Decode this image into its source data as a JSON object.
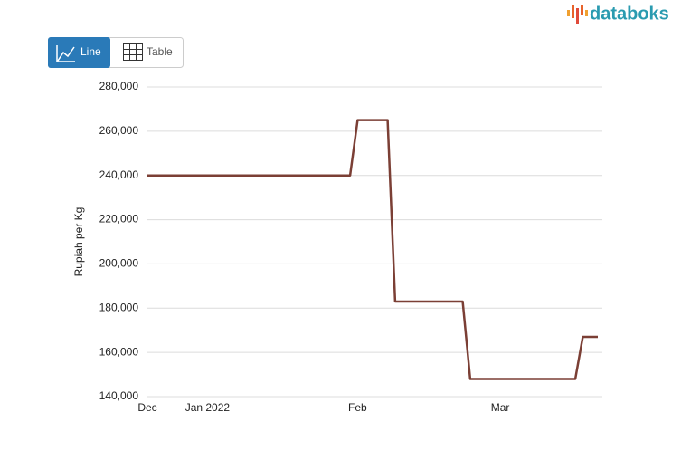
{
  "ui": {
    "brand": "databoks",
    "buttons": [
      "Line",
      "Table"
    ]
  },
  "chart_data": {
    "type": "line",
    "y_label": "Rupiah per Kg",
    "categories": [
      "Dec",
      null,
      null,
      null,
      null,
      null,
      null,
      null,
      "Jan 2022",
      null,
      null,
      null,
      null,
      null,
      null,
      null,
      null,
      null,
      null,
      null,
      null,
      null,
      null,
      null,
      null,
      null,
      null,
      null,
      "Feb",
      null,
      null,
      null,
      null,
      null,
      null,
      null,
      null,
      null,
      null,
      null,
      null,
      null,
      null,
      null,
      null,
      null,
      null,
      "Mar",
      null,
      null,
      null,
      null,
      null,
      null,
      null,
      null,
      null,
      null,
      null,
      null,
      null
    ],
    "series": [
      {
        "name": "Rupiah per Kg",
        "color": "#7b3f35",
        "values": [
          240000,
          240000,
          240000,
          240000,
          240000,
          240000,
          240000,
          240000,
          240000,
          240000,
          240000,
          240000,
          240000,
          240000,
          240000,
          240000,
          240000,
          240000,
          240000,
          240000,
          240000,
          240000,
          240000,
          240000,
          240000,
          240000,
          240000,
          240000,
          265000,
          265000,
          265000,
          265000,
          265000,
          183000,
          183000,
          183000,
          183000,
          183000,
          183000,
          183000,
          183000,
          183000,
          183000,
          148000,
          148000,
          148000,
          148000,
          148000,
          148000,
          148000,
          148000,
          148000,
          148000,
          148000,
          148000,
          148000,
          148000,
          148000,
          167000,
          167000,
          167000
        ]
      }
    ],
    "ylim": [
      140000,
      280000
    ],
    "yticks": [
      {
        "value": 140000,
        "label": "140,000"
      },
      {
        "value": 160000,
        "label": "160,000"
      },
      {
        "value": 180000,
        "label": "180,000"
      },
      {
        "value": 200000,
        "label": "200,000"
      },
      {
        "value": 220000,
        "label": "220,000"
      },
      {
        "value": 240000,
        "label": "240,000"
      },
      {
        "value": 260000,
        "label": "260,000"
      },
      {
        "value": 280000,
        "label": "280,000"
      }
    ],
    "grid": true
  }
}
